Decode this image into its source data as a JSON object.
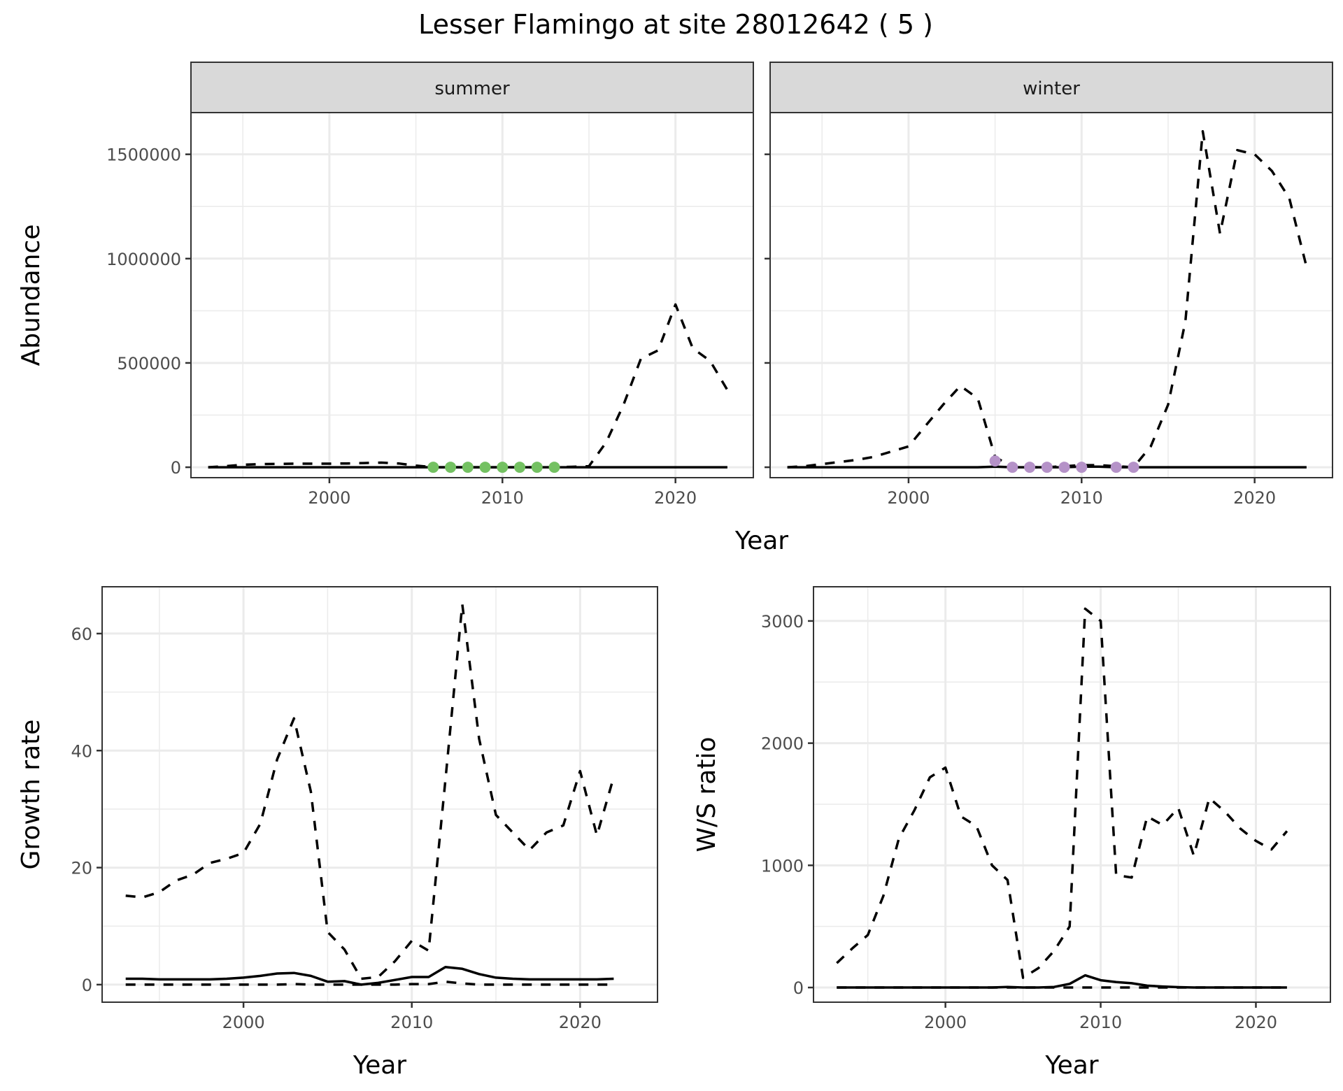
{
  "title": "Lesser Flamingo at site 28012642 ( 5 )",
  "colors": {
    "summer_points": "#74c162",
    "winter_points": "#b592c8",
    "line": "#000000",
    "strip_bg": "#d9d9d9",
    "grid": "#ebebeb"
  },
  "chart_data": [
    {
      "type": "line",
      "facet": "summer",
      "xlabel": "Year",
      "ylabel": "Abundance",
      "xlim": [
        1992,
        2024.5
      ],
      "ylim": [
        -50000,
        1700000
      ],
      "xticks": [
        "2000",
        "2010",
        "2020"
      ],
      "yticks": [
        "0",
        "500000",
        "1000000",
        "1500000"
      ],
      "x": [
        1993,
        1994,
        1995,
        1996,
        1997,
        1998,
        1999,
        2000,
        2001,
        2002,
        2003,
        2004,
        2005,
        2006,
        2007,
        2008,
        2009,
        2010,
        2011,
        2012,
        2013,
        2014,
        2015,
        2016,
        2017,
        2018,
        2019,
        2020,
        2021,
        2022,
        2023
      ],
      "series": [
        {
          "name": "upper",
          "style": "dashed",
          "values": [
            0,
            5000,
            12000,
            15000,
            16000,
            17000,
            17000,
            17000,
            18000,
            20000,
            22000,
            18000,
            8000,
            0,
            0,
            0,
            0,
            0,
            0,
            0,
            0,
            2000,
            5000,
            120000,
            300000,
            520000,
            560000,
            780000,
            570000,
            510000,
            370000
          ]
        },
        {
          "name": "estimate",
          "style": "solid",
          "values": [
            0,
            0,
            0,
            0,
            0,
            0,
            0,
            0,
            0,
            0,
            0,
            0,
            0,
            0,
            0,
            0,
            0,
            0,
            0,
            0,
            0,
            0,
            0,
            0,
            0,
            0,
            0,
            0,
            0,
            0,
            0
          ]
        }
      ],
      "points": {
        "x": [
          2006,
          2007,
          2008,
          2009,
          2010,
          2011,
          2012,
          2013
        ],
        "y": [
          0,
          0,
          0,
          0,
          0,
          0,
          0,
          0
        ]
      }
    },
    {
      "type": "line",
      "facet": "winter",
      "xlabel": "Year",
      "ylabel": "Abundance",
      "xlim": [
        1992,
        2024.5
      ],
      "ylim": [
        -50000,
        1700000
      ],
      "xticks": [
        "2000",
        "2010",
        "2020"
      ],
      "yticks": [
        "0",
        "500000",
        "1000000",
        "1500000"
      ],
      "x": [
        1993,
        1994,
        1995,
        1996,
        1997,
        1998,
        1999,
        2000,
        2001,
        2002,
        2003,
        2004,
        2005,
        2006,
        2007,
        2008,
        2009,
        2010,
        2011,
        2012,
        2013,
        2014,
        2015,
        2016,
        2017,
        2018,
        2019,
        2020,
        2021,
        2022,
        2023
      ],
      "series": [
        {
          "name": "upper",
          "style": "dashed",
          "values": [
            0,
            5000,
            15000,
            25000,
            35000,
            50000,
            75000,
            100000,
            200000,
            300000,
            390000,
            330000,
            50000,
            0,
            0,
            0,
            5000,
            10000,
            10000,
            5000,
            0,
            100000,
            300000,
            700000,
            1610000,
            1120000,
            1520000,
            1500000,
            1420000,
            1290000,
            960000
          ]
        },
        {
          "name": "estimate",
          "style": "solid",
          "values": [
            0,
            0,
            0,
            0,
            0,
            0,
            0,
            0,
            0,
            0,
            0,
            0,
            3000,
            0,
            0,
            0,
            0,
            3000,
            3000,
            0,
            0,
            0,
            0,
            0,
            0,
            0,
            0,
            0,
            0,
            0,
            0
          ]
        }
      ],
      "points": {
        "x": [
          2005,
          2006,
          2007,
          2008,
          2009,
          2010,
          2012,
          2013
        ],
        "y": [
          30000,
          0,
          0,
          0,
          0,
          0,
          0,
          0
        ]
      }
    },
    {
      "type": "line",
      "xlabel": "Year",
      "ylabel": "Growth rate",
      "xlim": [
        1991.6,
        2024.6
      ],
      "ylim": [
        -3,
        68
      ],
      "xticks": [
        "2000",
        "2010",
        "2020"
      ],
      "yticks": [
        "0",
        "20",
        "40",
        "60"
      ],
      "x": [
        1993,
        1994,
        1995,
        1996,
        1997,
        1998,
        1999,
        2000,
        2001,
        2002,
        2003,
        2004,
        2005,
        2006,
        2007,
        2008,
        2009,
        2010,
        2011,
        2012,
        2013,
        2014,
        2015,
        2016,
        2017,
        2018,
        2019,
        2020,
        2021,
        2022
      ],
      "series": [
        {
          "name": "upper",
          "style": "dashed",
          "values": [
            15.2,
            14.9,
            15.8,
            17.8,
            18.8,
            20.8,
            21.5,
            22.5,
            27.5,
            38.5,
            45.5,
            33,
            9,
            6,
            1,
            1.3,
            4,
            7.5,
            5.8,
            35,
            65,
            42,
            29,
            26,
            23,
            26,
            27.2,
            36.5,
            25.5,
            35.5
          ]
        },
        {
          "name": "estimate",
          "style": "solid",
          "values": [
            1,
            1,
            0.9,
            0.9,
            0.9,
            0.9,
            1,
            1.2,
            1.5,
            1.9,
            2,
            1.5,
            0.5,
            0.6,
            0,
            0.3,
            0.8,
            1.3,
            1.3,
            3,
            2.7,
            1.8,
            1.2,
            1,
            0.9,
            0.9,
            0.9,
            0.9,
            0.9,
            1
          ]
        },
        {
          "name": "lower",
          "style": "dashed",
          "values": [
            0,
            0,
            0,
            0,
            0,
            0,
            0,
            0,
            0,
            0,
            0.1,
            0,
            0,
            0,
            0,
            0,
            0,
            0.1,
            0.1,
            0.5,
            0.2,
            0,
            0,
            0,
            0,
            0,
            0,
            0,
            0,
            0
          ]
        }
      ]
    },
    {
      "type": "line",
      "xlabel": "Year",
      "ylabel": "W/S ratio",
      "xlim": [
        1991.5,
        2024.8
      ],
      "ylim": [
        -120,
        3280
      ],
      "xticks": [
        "2000",
        "2010",
        "2020"
      ],
      "yticks": [
        "0",
        "1000",
        "2000",
        "3000"
      ],
      "x": [
        1993,
        1994,
        1995,
        1996,
        1997,
        1998,
        1999,
        2000,
        2001,
        2002,
        2003,
        2004,
        2005,
        2006,
        2007,
        2008,
        2009,
        2010,
        2011,
        2012,
        2013,
        2014,
        2015,
        2016,
        2017,
        2018,
        2019,
        2020,
        2021,
        2022
      ],
      "series": [
        {
          "name": "upper",
          "style": "dashed",
          "values": [
            200,
            320,
            430,
            750,
            1220,
            1450,
            1720,
            1800,
            1400,
            1320,
            1000,
            880,
            80,
            160,
            300,
            500,
            3100,
            3000,
            920,
            900,
            1400,
            1330,
            1470,
            1080,
            1550,
            1440,
            1300,
            1200,
            1130,
            1280
          ]
        },
        {
          "name": "estimate",
          "style": "solid",
          "values": [
            0,
            0,
            0,
            0,
            0,
            0,
            0,
            0,
            0,
            0,
            0,
            5,
            0,
            0,
            5,
            30,
            100,
            60,
            45,
            35,
            15,
            8,
            3,
            0,
            0,
            0,
            0,
            0,
            0,
            0
          ]
        },
        {
          "name": "lower",
          "style": "dashed",
          "values": [
            0,
            0,
            0,
            0,
            0,
            0,
            0,
            0,
            0,
            0,
            0,
            0,
            0,
            0,
            0,
            0,
            0,
            0,
            0,
            0,
            0,
            0,
            0,
            0,
            0,
            0,
            0,
            0,
            0,
            0
          ]
        }
      ]
    }
  ]
}
